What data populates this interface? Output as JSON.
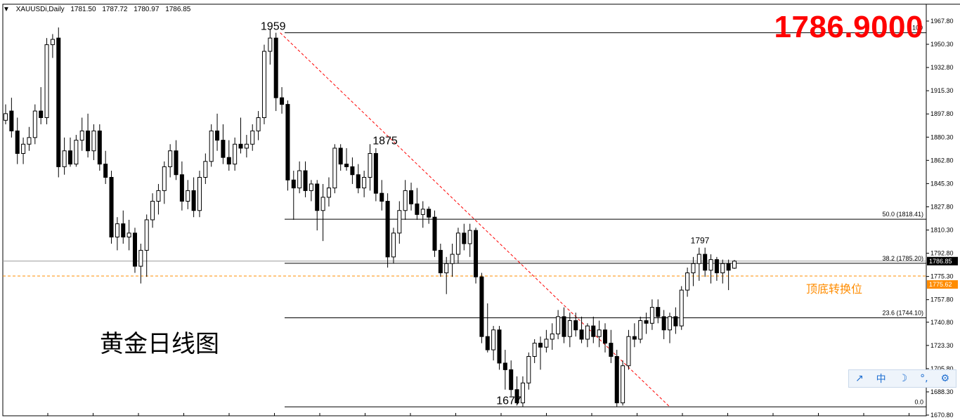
{
  "header": {
    "symbol": "XAUUSDi,Daily",
    "open": "1781.50",
    "high": "1787.72",
    "low": "1780.97",
    "close": "1786.85"
  },
  "big_price": "1786.9000",
  "chart_title": "黄金日线图",
  "zone_label": "顶底转换位",
  "toolbar": {
    "item1": "中",
    "item2": "☽",
    "item3": "°,"
  },
  "colors": {
    "bull": "#ffffff",
    "bear": "#000000",
    "support": "#ff8c00",
    "trendline": "#ff0000",
    "price_text": "#ff0000"
  },
  "chart_data": {
    "type": "candlestick",
    "ylim": [
      1664,
      1974
    ],
    "ticks": [
      "1967.80",
      "1950.30",
      "1932.80",
      "1915.30",
      "1897.80",
      "1880.30",
      "1862.80",
      "1845.30",
      "1827.80",
      "1810.30",
      "1792.80",
      "1775.30",
      "1757.80",
      "1740.80",
      "1723.30",
      "1705.80",
      "1688.30",
      "1670.80"
    ],
    "last_price_label": "1786.85",
    "support_label": "1775.62",
    "support_level": 1775.62,
    "fib": {
      "high": 1959,
      "low": 1677,
      "levels": [
        {
          "label": "100",
          "value": 1959
        },
        {
          "label": "50.0 (1818.41)",
          "value": 1818.41
        },
        {
          "label": "38.2 (1785.20)",
          "value": 1785.2
        },
        {
          "label": "23.6 (1744.10)",
          "value": 1744.1
        },
        {
          "label": "0.0",
          "value": 1677
        }
      ]
    },
    "annotations": [
      "1959",
      "1875",
      "1677",
      "1797"
    ],
    "candles": [
      {
        "o": 1893,
        "h": 1905,
        "l": 1890,
        "c": 1898
      },
      {
        "o": 1900,
        "h": 1910,
        "l": 1880,
        "c": 1885
      },
      {
        "o": 1885,
        "h": 1895,
        "l": 1860,
        "c": 1868
      },
      {
        "o": 1868,
        "h": 1880,
        "l": 1860,
        "c": 1875
      },
      {
        "o": 1875,
        "h": 1888,
        "l": 1870,
        "c": 1880
      },
      {
        "o": 1880,
        "h": 1905,
        "l": 1875,
        "c": 1900
      },
      {
        "o": 1900,
        "h": 1918,
        "l": 1890,
        "c": 1895
      },
      {
        "o": 1895,
        "h": 1955,
        "l": 1890,
        "c": 1950
      },
      {
        "o": 1950,
        "h": 1958,
        "l": 1940,
        "c": 1954
      },
      {
        "o": 1955,
        "h": 1963,
        "l": 1850,
        "c": 1858
      },
      {
        "o": 1858,
        "h": 1880,
        "l": 1852,
        "c": 1870
      },
      {
        "o": 1870,
        "h": 1880,
        "l": 1858,
        "c": 1860
      },
      {
        "o": 1860,
        "h": 1882,
        "l": 1858,
        "c": 1878
      },
      {
        "o": 1878,
        "h": 1895,
        "l": 1870,
        "c": 1885
      },
      {
        "o": 1885,
        "h": 1898,
        "l": 1865,
        "c": 1870
      },
      {
        "o": 1870,
        "h": 1890,
        "l": 1863,
        "c": 1885
      },
      {
        "o": 1885,
        "h": 1890,
        "l": 1855,
        "c": 1860
      },
      {
        "o": 1860,
        "h": 1870,
        "l": 1845,
        "c": 1850
      },
      {
        "o": 1850,
        "h": 1855,
        "l": 1800,
        "c": 1805
      },
      {
        "o": 1805,
        "h": 1820,
        "l": 1795,
        "c": 1815
      },
      {
        "o": 1815,
        "h": 1825,
        "l": 1800,
        "c": 1805
      },
      {
        "o": 1805,
        "h": 1818,
        "l": 1795,
        "c": 1808
      },
      {
        "o": 1808,
        "h": 1812,
        "l": 1778,
        "c": 1783
      },
      {
        "o": 1783,
        "h": 1800,
        "l": 1770,
        "c": 1795
      },
      {
        "o": 1795,
        "h": 1822,
        "l": 1775,
        "c": 1818
      },
      {
        "o": 1818,
        "h": 1838,
        "l": 1812,
        "c": 1832
      },
      {
        "o": 1832,
        "h": 1845,
        "l": 1822,
        "c": 1840
      },
      {
        "o": 1840,
        "h": 1862,
        "l": 1830,
        "c": 1858
      },
      {
        "o": 1858,
        "h": 1875,
        "l": 1850,
        "c": 1870
      },
      {
        "o": 1870,
        "h": 1878,
        "l": 1848,
        "c": 1852
      },
      {
        "o": 1852,
        "h": 1862,
        "l": 1825,
        "c": 1832
      },
      {
        "o": 1832,
        "h": 1848,
        "l": 1826,
        "c": 1840
      },
      {
        "o": 1840,
        "h": 1850,
        "l": 1820,
        "c": 1825
      },
      {
        "o": 1825,
        "h": 1855,
        "l": 1820,
        "c": 1850
      },
      {
        "o": 1850,
        "h": 1868,
        "l": 1845,
        "c": 1862
      },
      {
        "o": 1862,
        "h": 1890,
        "l": 1858,
        "c": 1885
      },
      {
        "o": 1885,
        "h": 1898,
        "l": 1870,
        "c": 1878
      },
      {
        "o": 1878,
        "h": 1890,
        "l": 1860,
        "c": 1865
      },
      {
        "o": 1865,
        "h": 1878,
        "l": 1855,
        "c": 1860
      },
      {
        "o": 1860,
        "h": 1880,
        "l": 1855,
        "c": 1875
      },
      {
        "o": 1875,
        "h": 1895,
        "l": 1868,
        "c": 1872
      },
      {
        "o": 1872,
        "h": 1882,
        "l": 1865,
        "c": 1875
      },
      {
        "o": 1875,
        "h": 1890,
        "l": 1870,
        "c": 1885
      },
      {
        "o": 1885,
        "h": 1900,
        "l": 1878,
        "c": 1895
      },
      {
        "o": 1895,
        "h": 1950,
        "l": 1890,
        "c": 1945
      },
      {
        "o": 1945,
        "h": 1962,
        "l": 1935,
        "c": 1955
      },
      {
        "o": 1955,
        "h": 1959,
        "l": 1900,
        "c": 1910
      },
      {
        "o": 1910,
        "h": 1918,
        "l": 1898,
        "c": 1905
      },
      {
        "o": 1905,
        "h": 1908,
        "l": 1840,
        "c": 1848
      },
      {
        "o": 1848,
        "h": 1855,
        "l": 1818,
        "c": 1842
      },
      {
        "o": 1842,
        "h": 1862,
        "l": 1838,
        "c": 1855
      },
      {
        "o": 1855,
        "h": 1862,
        "l": 1835,
        "c": 1840
      },
      {
        "o": 1840,
        "h": 1848,
        "l": 1832,
        "c": 1845
      },
      {
        "o": 1845,
        "h": 1848,
        "l": 1810,
        "c": 1825
      },
      {
        "o": 1825,
        "h": 1845,
        "l": 1802,
        "c": 1835
      },
      {
        "o": 1835,
        "h": 1850,
        "l": 1828,
        "c": 1842
      },
      {
        "o": 1842,
        "h": 1875,
        "l": 1838,
        "c": 1872
      },
      {
        "o": 1872,
        "h": 1875,
        "l": 1855,
        "c": 1860
      },
      {
        "o": 1860,
        "h": 1872,
        "l": 1855,
        "c": 1858
      },
      {
        "o": 1858,
        "h": 1865,
        "l": 1845,
        "c": 1852
      },
      {
        "o": 1852,
        "h": 1860,
        "l": 1838,
        "c": 1842
      },
      {
        "o": 1842,
        "h": 1855,
        "l": 1835,
        "c": 1850
      },
      {
        "o": 1850,
        "h": 1875,
        "l": 1840,
        "c": 1868
      },
      {
        "o": 1868,
        "h": 1872,
        "l": 1832,
        "c": 1838
      },
      {
        "o": 1838,
        "h": 1848,
        "l": 1825,
        "c": 1832
      },
      {
        "o": 1832,
        "h": 1838,
        "l": 1782,
        "c": 1790
      },
      {
        "o": 1790,
        "h": 1812,
        "l": 1785,
        "c": 1808
      },
      {
        "o": 1808,
        "h": 1832,
        "l": 1800,
        "c": 1825
      },
      {
        "o": 1825,
        "h": 1848,
        "l": 1818,
        "c": 1840
      },
      {
        "o": 1840,
        "h": 1846,
        "l": 1825,
        "c": 1830
      },
      {
        "o": 1830,
        "h": 1842,
        "l": 1818,
        "c": 1822
      },
      {
        "o": 1822,
        "h": 1832,
        "l": 1812,
        "c": 1826
      },
      {
        "o": 1826,
        "h": 1828,
        "l": 1815,
        "c": 1820
      },
      {
        "o": 1820,
        "h": 1825,
        "l": 1790,
        "c": 1795
      },
      {
        "o": 1795,
        "h": 1800,
        "l": 1775,
        "c": 1778
      },
      {
        "o": 1778,
        "h": 1790,
        "l": 1762,
        "c": 1785
      },
      {
        "o": 1785,
        "h": 1800,
        "l": 1775,
        "c": 1792
      },
      {
        "o": 1792,
        "h": 1812,
        "l": 1785,
        "c": 1808
      },
      {
        "o": 1808,
        "h": 1815,
        "l": 1795,
        "c": 1800
      },
      {
        "o": 1800,
        "h": 1815,
        "l": 1790,
        "c": 1810
      },
      {
        "o": 1810,
        "h": 1812,
        "l": 1770,
        "c": 1775
      },
      {
        "o": 1775,
        "h": 1778,
        "l": 1725,
        "c": 1730
      },
      {
        "o": 1730,
        "h": 1755,
        "l": 1718,
        "c": 1720
      },
      {
        "o": 1720,
        "h": 1738,
        "l": 1712,
        "c": 1735
      },
      {
        "o": 1735,
        "h": 1738,
        "l": 1705,
        "c": 1710
      },
      {
        "o": 1710,
        "h": 1720,
        "l": 1690,
        "c": 1705
      },
      {
        "o": 1705,
        "h": 1712,
        "l": 1685,
        "c": 1690
      },
      {
        "o": 1690,
        "h": 1700,
        "l": 1678,
        "c": 1680
      },
      {
        "o": 1680,
        "h": 1700,
        "l": 1677,
        "c": 1695
      },
      {
        "o": 1695,
        "h": 1718,
        "l": 1690,
        "c": 1715
      },
      {
        "o": 1715,
        "h": 1728,
        "l": 1710,
        "c": 1725
      },
      {
        "o": 1725,
        "h": 1730,
        "l": 1705,
        "c": 1722
      },
      {
        "o": 1722,
        "h": 1735,
        "l": 1718,
        "c": 1728
      },
      {
        "o": 1728,
        "h": 1740,
        "l": 1720,
        "c": 1732
      },
      {
        "o": 1732,
        "h": 1750,
        "l": 1728,
        "c": 1745
      },
      {
        "o": 1745,
        "h": 1752,
        "l": 1725,
        "c": 1730
      },
      {
        "o": 1730,
        "h": 1748,
        "l": 1722,
        "c": 1742
      },
      {
        "o": 1742,
        "h": 1748,
        "l": 1730,
        "c": 1735
      },
      {
        "o": 1735,
        "h": 1745,
        "l": 1725,
        "c": 1728
      },
      {
        "o": 1728,
        "h": 1740,
        "l": 1722,
        "c": 1738
      },
      {
        "o": 1738,
        "h": 1745,
        "l": 1725,
        "c": 1730
      },
      {
        "o": 1730,
        "h": 1742,
        "l": 1722,
        "c": 1735
      },
      {
        "o": 1735,
        "h": 1740,
        "l": 1718,
        "c": 1725
      },
      {
        "o": 1725,
        "h": 1735,
        "l": 1710,
        "c": 1715
      },
      {
        "o": 1715,
        "h": 1720,
        "l": 1677,
        "c": 1680
      },
      {
        "o": 1680,
        "h": 1712,
        "l": 1678,
        "c": 1708
      },
      {
        "o": 1708,
        "h": 1735,
        "l": 1705,
        "c": 1730
      },
      {
        "o": 1730,
        "h": 1740,
        "l": 1722,
        "c": 1728
      },
      {
        "o": 1728,
        "h": 1745,
        "l": 1725,
        "c": 1742
      },
      {
        "o": 1742,
        "h": 1748,
        "l": 1732,
        "c": 1740
      },
      {
        "o": 1740,
        "h": 1758,
        "l": 1735,
        "c": 1752
      },
      {
        "o": 1752,
        "h": 1758,
        "l": 1740,
        "c": 1745
      },
      {
        "o": 1745,
        "h": 1750,
        "l": 1728,
        "c": 1735
      },
      {
        "o": 1735,
        "h": 1748,
        "l": 1725,
        "c": 1745
      },
      {
        "o": 1745,
        "h": 1752,
        "l": 1732,
        "c": 1738
      },
      {
        "o": 1738,
        "h": 1768,
        "l": 1735,
        "c": 1765
      },
      {
        "o": 1765,
        "h": 1782,
        "l": 1760,
        "c": 1778
      },
      {
        "o": 1778,
        "h": 1790,
        "l": 1768,
        "c": 1785
      },
      {
        "o": 1785,
        "h": 1797,
        "l": 1772,
        "c": 1792
      },
      {
        "o": 1792,
        "h": 1797,
        "l": 1775,
        "c": 1780
      },
      {
        "o": 1780,
        "h": 1792,
        "l": 1770,
        "c": 1788
      },
      {
        "o": 1788,
        "h": 1790,
        "l": 1772,
        "c": 1778
      },
      {
        "o": 1778,
        "h": 1788,
        "l": 1770,
        "c": 1785
      },
      {
        "o": 1785,
        "h": 1788,
        "l": 1765,
        "c": 1780
      },
      {
        "o": 1781.5,
        "h": 1787.72,
        "l": 1780.97,
        "c": 1786.85
      }
    ]
  }
}
